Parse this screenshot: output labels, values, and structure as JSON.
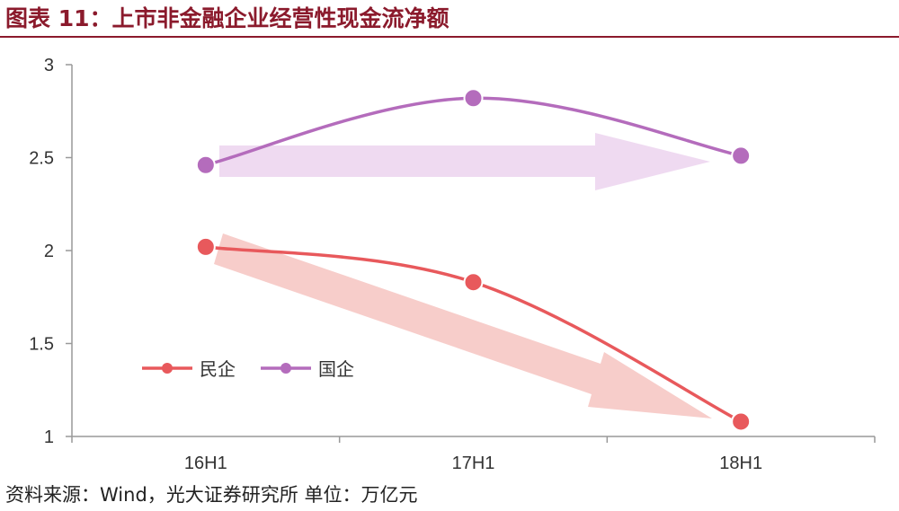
{
  "title": "图表 11：上市非金融企业经营性现金流净额",
  "source": "资料来源：Wind，光大证券研究所   单位：万亿元",
  "colors": {
    "title": "#8b1a2c",
    "private": "#e8595c",
    "state": "#b46cbc",
    "private_arrow": "#f4b8b4",
    "state_arrow": "#ecd3ee",
    "axis": "#999999"
  },
  "chart_data": {
    "type": "line",
    "categories": [
      "16H1",
      "17H1",
      "18H1"
    ],
    "series": [
      {
        "name": "民企",
        "values": [
          2.02,
          1.83,
          1.08
        ]
      },
      {
        "name": "国企",
        "values": [
          2.46,
          2.82,
          2.51
        ]
      }
    ],
    "ylim": [
      1,
      3
    ],
    "yticks": [
      "3",
      "2.5",
      "2",
      "1.5",
      "1"
    ],
    "legend": "bottom-left",
    "grid": false,
    "annotations": [
      "trend arrow (flat) over 国企",
      "trend arrow (down) over 民企"
    ]
  }
}
